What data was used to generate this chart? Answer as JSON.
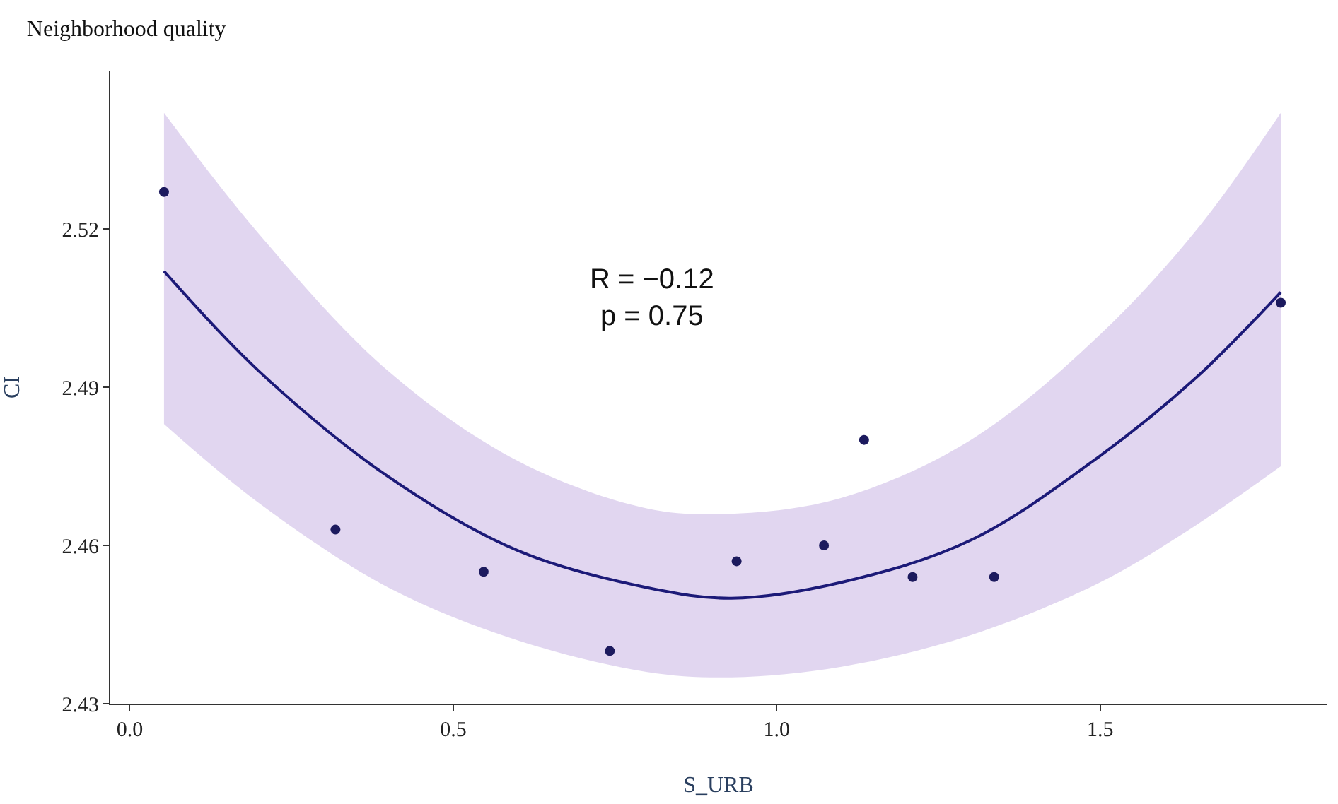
{
  "chart_data": {
    "type": "scatter",
    "title": "Neighborhood quality",
    "xlabel": "S_URB",
    "ylabel": "CI",
    "xlim": [
      -0.03,
      1.85
    ],
    "xticks": [
      {
        "value": 0,
        "label": "0.0"
      },
      0.5,
      {
        "value": 1,
        "label": "1.0"
      },
      1.5
    ],
    "ylim": [
      2.43,
      2.55
    ],
    "yticks": [
      2.43,
      2.46,
      2.49,
      2.52
    ],
    "marker": "circle",
    "annotations": [
      "R = −0.12\np = 0.75"
    ],
    "series": [
      {
        "type": "line",
        "color": "#1c1a78",
        "line_style": "solid",
        "marker": "none",
        "x": [
          0.053,
          0.2,
          0.4,
          0.6,
          0.8,
          0.93,
          1.1,
          1.3,
          1.5,
          1.65,
          1.779
        ],
        "values": [
          2.512,
          2.493,
          2.473,
          2.459,
          2.452,
          2.45,
          2.453,
          2.461,
          2.477,
          2.492,
          2.508
        ],
        "lower": [
          2.483,
          2.468,
          2.452,
          2.442,
          2.436,
          2.435,
          2.437,
          2.443,
          2.453,
          2.464,
          2.475
        ],
        "upper": [
          2.542,
          2.519,
          2.493,
          2.476,
          2.467,
          2.466,
          2.469,
          2.48,
          2.5,
          2.52,
          2.542
        ]
      },
      {
        "color": "#1c1a5e",
        "x": [
          0.053,
          0.318,
          0.547,
          0.742,
          0.938,
          1.073,
          1.135,
          1.21,
          1.336,
          1.779
        ],
        "values": [
          2.527,
          2.463,
          2.455,
          2.44,
          2.457,
          2.46,
          2.48,
          2.454,
          2.454,
          2.506
        ]
      }
    ]
  }
}
